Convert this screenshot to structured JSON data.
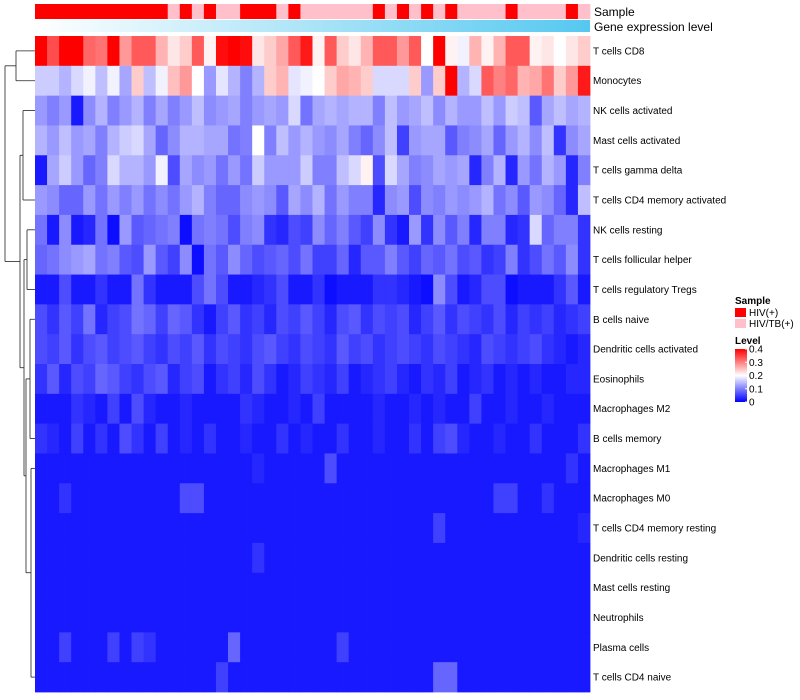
{
  "chart_data": {
    "type": "heatmap",
    "row_labels": [
      "T cells CD8",
      "Monocytes",
      "NK cells activated",
      "Mast cells activated",
      "T cells gamma delta",
      "T cells CD4 memory activated",
      "NK cells resting",
      "T cells follicular helper",
      "T cells regulatory  Tregs",
      "B cells naive",
      "Dendritic cells activated",
      "Eosinophils",
      "Macrophages M2",
      "B cells memory",
      "Macrophages M1",
      "Macrophages M0",
      "T cells CD4 memory resting",
      "Dendritic cells resting",
      "Mast cells resting",
      "Neutrophils",
      "Plasma cells",
      "T cells CD4 naive"
    ],
    "annotation_rows": [
      "Sample",
      "Gene expression level"
    ],
    "sample_groups": [
      "HIV(+)",
      "HIV(+)",
      "HIV(+)",
      "HIV(+)",
      "HIV(+)",
      "HIV(+)",
      "HIV(+)",
      "HIV(+)",
      "HIV(+)",
      "HIV(+)",
      "HIV(+)",
      "HIV/TB(+)",
      "HIV(+)",
      "HIV/TB(+)",
      "HIV(+)",
      "HIV/TB(+)",
      "HIV/TB(+)",
      "HIV(+)",
      "HIV(+)",
      "HIV(+)",
      "HIV/TB(+)",
      "HIV(+)",
      "HIV/TB(+)",
      "HIV/TB(+)",
      "HIV/TB(+)",
      "HIV/TB(+)",
      "HIV/TB(+)",
      "HIV/TB(+)",
      "HIV(+)",
      "HIV/TB(+)",
      "HIV(+)",
      "HIV/TB(+)",
      "HIV(+)",
      "HIV/TB(+)",
      "HIV(+)",
      "HIV/TB(+)",
      "HIV/TB(+)",
      "HIV/TB(+)",
      "HIV/TB(+)",
      "HIV(+)",
      "HIV/TB(+)",
      "HIV/TB(+)",
      "HIV/TB(+)",
      "HIV/TB(+)",
      "HIV(+)",
      "HIV/TB(+)"
    ],
    "group_colors": {
      "HIV(+)": "#ff0000",
      "HIV/TB(+)": "#ffc0cb"
    },
    "expression_gradient": [
      "#ffffff",
      "#55c8f0"
    ],
    "color_scale": {
      "min": 0,
      "max": 0.4,
      "colors": [
        "#0000ff",
        "#ffffff",
        "#ff0000"
      ]
    },
    "values": [
      [
        0.4,
        0.34,
        0.4,
        0.4,
        0.32,
        0.31,
        0.4,
        0.28,
        0.33,
        0.33,
        0.26,
        0.22,
        0.24,
        0.33,
        0.21,
        0.39,
        0.4,
        0.39,
        0.22,
        0.24,
        0.27,
        0.33,
        0.38,
        0.21,
        0.33,
        0.24,
        0.22,
        0.26,
        0.33,
        0.33,
        0.28,
        0.33,
        0.2,
        0.4,
        0.21,
        0.19,
        0.26,
        0.21,
        0.26,
        0.33,
        0.33,
        0.21,
        0.22,
        0.2,
        0.22,
        0.24
      ],
      [
        0.16,
        0.16,
        0.14,
        0.17,
        0.19,
        0.15,
        0.19,
        0.13,
        0.24,
        0.15,
        0.19,
        0.25,
        0.28,
        0.2,
        0.12,
        0.18,
        0.14,
        0.1,
        0.14,
        0.24,
        0.26,
        0.18,
        0.19,
        0.2,
        0.24,
        0.27,
        0.26,
        0.24,
        0.17,
        0.17,
        0.17,
        0.24,
        0.12,
        0.24,
        0.4,
        0.14,
        0.17,
        0.33,
        0.3,
        0.32,
        0.26,
        0.27,
        0.31,
        0.24,
        0.28,
        0.38
      ],
      [
        0.12,
        0.1,
        0.12,
        0.02,
        0.11,
        0.14,
        0.1,
        0.12,
        0.14,
        0.1,
        0.13,
        0.1,
        0.12,
        0.15,
        0.11,
        0.12,
        0.13,
        0.1,
        0.12,
        0.13,
        0.12,
        0.17,
        0.09,
        0.13,
        0.14,
        0.13,
        0.14,
        0.14,
        0.1,
        0.15,
        0.12,
        0.13,
        0.15,
        0.11,
        0.14,
        0.12,
        0.12,
        0.15,
        0.12,
        0.16,
        0.15,
        0.07,
        0.13,
        0.15,
        0.13,
        0.14
      ],
      [
        0.14,
        0.12,
        0.15,
        0.12,
        0.13,
        0.1,
        0.14,
        0.16,
        0.17,
        0.13,
        0.08,
        0.11,
        0.14,
        0.14,
        0.13,
        0.13,
        0.09,
        0.1,
        0.2,
        0.1,
        0.15,
        0.12,
        0.14,
        0.12,
        0.11,
        0.13,
        0.1,
        0.08,
        0.11,
        0.15,
        0.05,
        0.12,
        0.13,
        0.13,
        0.07,
        0.1,
        0.11,
        0.13,
        0.08,
        0.12,
        0.14,
        0.11,
        0.15,
        0.04,
        0.11,
        0.13
      ],
      [
        0.02,
        0.13,
        0.16,
        0.12,
        0.08,
        0.1,
        0.17,
        0.14,
        0.14,
        0.12,
        0.19,
        0.06,
        0.13,
        0.11,
        0.12,
        0.09,
        0.12,
        0.09,
        0.16,
        0.12,
        0.12,
        0.12,
        0.16,
        0.1,
        0.1,
        0.15,
        0.17,
        0.21,
        0.06,
        0.17,
        0.13,
        0.1,
        0.11,
        0.13,
        0.12,
        0.13,
        0.03,
        0.1,
        0.14,
        0.03,
        0.12,
        0.09,
        0.14,
        0.12,
        0.03,
        0.1
      ],
      [
        0.12,
        0.11,
        0.08,
        0.08,
        0.12,
        0.09,
        0.12,
        0.1,
        0.12,
        0.09,
        0.11,
        0.09,
        0.12,
        0.14,
        0.1,
        0.08,
        0.08,
        0.11,
        0.12,
        0.11,
        0.07,
        0.13,
        0.11,
        0.14,
        0.09,
        0.12,
        0.1,
        0.1,
        0.03,
        0.11,
        0.12,
        0.06,
        0.11,
        0.1,
        0.12,
        0.11,
        0.12,
        0.14,
        0.09,
        0.11,
        0.07,
        0.12,
        0.11,
        0.08,
        0.03,
        0.15
      ],
      [
        0.09,
        0.02,
        0.11,
        0.02,
        0.03,
        0.09,
        0.01,
        0.12,
        0.07,
        0.08,
        0.09,
        0.1,
        0.01,
        0.09,
        0.1,
        0.09,
        0.06,
        0.1,
        0.11,
        0.04,
        0.03,
        0.06,
        0.05,
        0.11,
        0.08,
        0.1,
        0.07,
        0.05,
        0.11,
        0.04,
        0.02,
        0.12,
        0.04,
        0.11,
        0.07,
        0.1,
        0.03,
        0.1,
        0.1,
        0.03,
        0.04,
        0.17,
        0.08,
        0.1,
        0.1,
        0.04
      ],
      [
        0.08,
        0.09,
        0.11,
        0.12,
        0.13,
        0.09,
        0.1,
        0.07,
        0.06,
        0.12,
        0.07,
        0.05,
        0.11,
        0.01,
        0.09,
        0.07,
        0.11,
        0.08,
        0.06,
        0.07,
        0.08,
        0.06,
        0.09,
        0.05,
        0.05,
        0.08,
        0.03,
        0.07,
        0.07,
        0.1,
        0.07,
        0.05,
        0.08,
        0.07,
        0.09,
        0.06,
        0.07,
        0.04,
        0.05,
        0.1,
        0.04,
        0.06,
        0.09,
        0.07,
        0.11,
        0.04
      ],
      [
        0.02,
        0.02,
        0.06,
        0.02,
        0.02,
        0.04,
        0.02,
        0.02,
        0.09,
        0.04,
        0.02,
        0.02,
        0.02,
        0.06,
        0.09,
        0.06,
        0.02,
        0.02,
        0.03,
        0.04,
        0.06,
        0.02,
        0.02,
        0.04,
        0.01,
        0.02,
        0.02,
        0.02,
        0.04,
        0.04,
        0.03,
        0.02,
        0.01,
        0.11,
        0.06,
        0.02,
        0.03,
        0.06,
        0.06,
        0.01,
        0.02,
        0.02,
        0.02,
        0.04,
        0.07,
        0.02
      ],
      [
        0.06,
        0.04,
        0.07,
        0.05,
        0.09,
        0.03,
        0.05,
        0.06,
        0.09,
        0.08,
        0.05,
        0.08,
        0.07,
        0.04,
        0.02,
        0.05,
        0.07,
        0.04,
        0.05,
        0.03,
        0.06,
        0.05,
        0.07,
        0.05,
        0.03,
        0.06,
        0.07,
        0.04,
        0.06,
        0.05,
        0.06,
        0.03,
        0.05,
        0.07,
        0.04,
        0.06,
        0.05,
        0.04,
        0.06,
        0.03,
        0.05,
        0.04,
        0.05,
        0.03,
        0.04,
        0.05
      ],
      [
        0.06,
        0.05,
        0.07,
        0.04,
        0.06,
        0.07,
        0.05,
        0.06,
        0.07,
        0.05,
        0.04,
        0.06,
        0.05,
        0.07,
        0.04,
        0.06,
        0.05,
        0.04,
        0.06,
        0.07,
        0.05,
        0.04,
        0.06,
        0.05,
        0.04,
        0.07,
        0.05,
        0.06,
        0.04,
        0.05,
        0.06,
        0.05,
        0.04,
        0.06,
        0.05,
        0.04,
        0.03,
        0.06,
        0.05,
        0.04,
        0.05,
        0.06,
        0.04,
        0.03,
        0.02,
        0.03
      ],
      [
        0.04,
        0.07,
        0.03,
        0.06,
        0.05,
        0.08,
        0.07,
        0.05,
        0.04,
        0.06,
        0.07,
        0.03,
        0.05,
        0.06,
        0.02,
        0.04,
        0.05,
        0.03,
        0.06,
        0.04,
        0.02,
        0.03,
        0.05,
        0.04,
        0.03,
        0.05,
        0.02,
        0.03,
        0.04,
        0.05,
        0.03,
        0.02,
        0.04,
        0.03,
        0.05,
        0.02,
        0.03,
        0.04,
        0.02,
        0.03,
        0.02,
        0.03,
        0.02,
        0.02,
        0.03,
        0.03
      ],
      [
        0.02,
        0.02,
        0.02,
        0.04,
        0.03,
        0.02,
        0.05,
        0.02,
        0.06,
        0.03,
        0.02,
        0.02,
        0.03,
        0.02,
        0.02,
        0.02,
        0.02,
        0.04,
        0.03,
        0.02,
        0.02,
        0.03,
        0.02,
        0.05,
        0.02,
        0.02,
        0.02,
        0.02,
        0.03,
        0.02,
        0.02,
        0.03,
        0.02,
        0.03,
        0.02,
        0.02,
        0.05,
        0.02,
        0.02,
        0.03,
        0.02,
        0.02,
        0.03,
        0.02,
        0.02,
        0.02
      ],
      [
        0.04,
        0.03,
        0.02,
        0.05,
        0.02,
        0.04,
        0.02,
        0.06,
        0.04,
        0.02,
        0.05,
        0.02,
        0.03,
        0.02,
        0.04,
        0.02,
        0.02,
        0.03,
        0.02,
        0.02,
        0.04,
        0.02,
        0.03,
        0.02,
        0.02,
        0.04,
        0.02,
        0.02,
        0.03,
        0.02,
        0.02,
        0.04,
        0.02,
        0.05,
        0.06,
        0.03,
        0.02,
        0.02,
        0.03,
        0.02,
        0.02,
        0.04,
        0.02,
        0.02,
        0.02,
        0.04
      ],
      [
        0.02,
        0.02,
        0.02,
        0.02,
        0.02,
        0.02,
        0.02,
        0.02,
        0.02,
        0.02,
        0.02,
        0.02,
        0.02,
        0.02,
        0.02,
        0.02,
        0.02,
        0.02,
        0.03,
        0.02,
        0.02,
        0.02,
        0.02,
        0.02,
        0.06,
        0.02,
        0.02,
        0.02,
        0.02,
        0.02,
        0.02,
        0.02,
        0.02,
        0.02,
        0.02,
        0.02,
        0.02,
        0.02,
        0.02,
        0.02,
        0.02,
        0.02,
        0.02,
        0.02,
        0.04,
        0.02
      ],
      [
        0.02,
        0.02,
        0.04,
        0.02,
        0.02,
        0.02,
        0.02,
        0.02,
        0.02,
        0.02,
        0.02,
        0.02,
        0.06,
        0.06,
        0.02,
        0.02,
        0.02,
        0.02,
        0.02,
        0.02,
        0.02,
        0.02,
        0.02,
        0.02,
        0.02,
        0.02,
        0.02,
        0.02,
        0.02,
        0.02,
        0.02,
        0.02,
        0.02,
        0.02,
        0.02,
        0.02,
        0.02,
        0.02,
        0.05,
        0.05,
        0.02,
        0.02,
        0.04,
        0.02,
        0.02,
        0.02
      ],
      [
        0.02,
        0.02,
        0.02,
        0.02,
        0.02,
        0.02,
        0.02,
        0.02,
        0.02,
        0.02,
        0.02,
        0.02,
        0.02,
        0.02,
        0.02,
        0.02,
        0.02,
        0.02,
        0.02,
        0.02,
        0.02,
        0.02,
        0.02,
        0.02,
        0.02,
        0.02,
        0.02,
        0.02,
        0.02,
        0.02,
        0.02,
        0.02,
        0.02,
        0.05,
        0.02,
        0.02,
        0.02,
        0.02,
        0.02,
        0.02,
        0.02,
        0.02,
        0.02,
        0.02,
        0.02,
        0.03
      ],
      [
        0.02,
        0.02,
        0.02,
        0.02,
        0.02,
        0.02,
        0.02,
        0.02,
        0.02,
        0.02,
        0.02,
        0.02,
        0.02,
        0.02,
        0.02,
        0.02,
        0.02,
        0.02,
        0.04,
        0.02,
        0.02,
        0.02,
        0.02,
        0.02,
        0.02,
        0.02,
        0.02,
        0.02,
        0.02,
        0.02,
        0.02,
        0.02,
        0.02,
        0.02,
        0.02,
        0.02,
        0.02,
        0.02,
        0.02,
        0.02,
        0.02,
        0.02,
        0.02,
        0.02,
        0.02,
        0.02
      ],
      [
        0.02,
        0.02,
        0.02,
        0.02,
        0.02,
        0.02,
        0.02,
        0.02,
        0.02,
        0.02,
        0.02,
        0.02,
        0.02,
        0.02,
        0.02,
        0.02,
        0.02,
        0.02,
        0.02,
        0.02,
        0.02,
        0.02,
        0.02,
        0.02,
        0.02,
        0.02,
        0.02,
        0.02,
        0.02,
        0.02,
        0.02,
        0.02,
        0.02,
        0.02,
        0.02,
        0.02,
        0.02,
        0.02,
        0.02,
        0.02,
        0.02,
        0.02,
        0.02,
        0.02,
        0.02,
        0.02
      ],
      [
        0.02,
        0.02,
        0.02,
        0.02,
        0.02,
        0.02,
        0.02,
        0.02,
        0.02,
        0.02,
        0.02,
        0.02,
        0.02,
        0.02,
        0.02,
        0.02,
        0.02,
        0.02,
        0.02,
        0.02,
        0.02,
        0.02,
        0.02,
        0.02,
        0.02,
        0.02,
        0.02,
        0.02,
        0.02,
        0.02,
        0.02,
        0.02,
        0.02,
        0.02,
        0.02,
        0.02,
        0.02,
        0.02,
        0.02,
        0.02,
        0.02,
        0.02,
        0.02,
        0.02,
        0.02,
        0.02
      ],
      [
        0.02,
        0.02,
        0.05,
        0.02,
        0.02,
        0.02,
        0.05,
        0.02,
        0.05,
        0.04,
        0.02,
        0.02,
        0.02,
        0.02,
        0.02,
        0.02,
        0.08,
        0.02,
        0.02,
        0.02,
        0.02,
        0.02,
        0.02,
        0.02,
        0.02,
        0.05,
        0.02,
        0.02,
        0.02,
        0.02,
        0.02,
        0.02,
        0.02,
        0.02,
        0.02,
        0.02,
        0.02,
        0.02,
        0.02,
        0.02,
        0.02,
        0.02,
        0.02,
        0.02,
        0.02,
        0.02
      ],
      [
        0.02,
        0.02,
        0.02,
        0.02,
        0.02,
        0.02,
        0.02,
        0.02,
        0.02,
        0.02,
        0.02,
        0.02,
        0.02,
        0.02,
        0.02,
        0.05,
        0.02,
        0.02,
        0.02,
        0.02,
        0.02,
        0.02,
        0.02,
        0.02,
        0.02,
        0.02,
        0.02,
        0.02,
        0.02,
        0.02,
        0.02,
        0.02,
        0.02,
        0.08,
        0.08,
        0.02,
        0.02,
        0.02,
        0.02,
        0.02,
        0.02,
        0.02,
        0.02,
        0.02,
        0.02,
        0.02
      ]
    ],
    "legend": {
      "sample_title": "Sample",
      "sample_items": [
        "HIV(+)",
        "HIV/TB(+)"
      ],
      "level_title": "Level",
      "level_ticks": [
        "0.4",
        "0.3",
        "0.2",
        "0.1",
        "0"
      ]
    }
  }
}
